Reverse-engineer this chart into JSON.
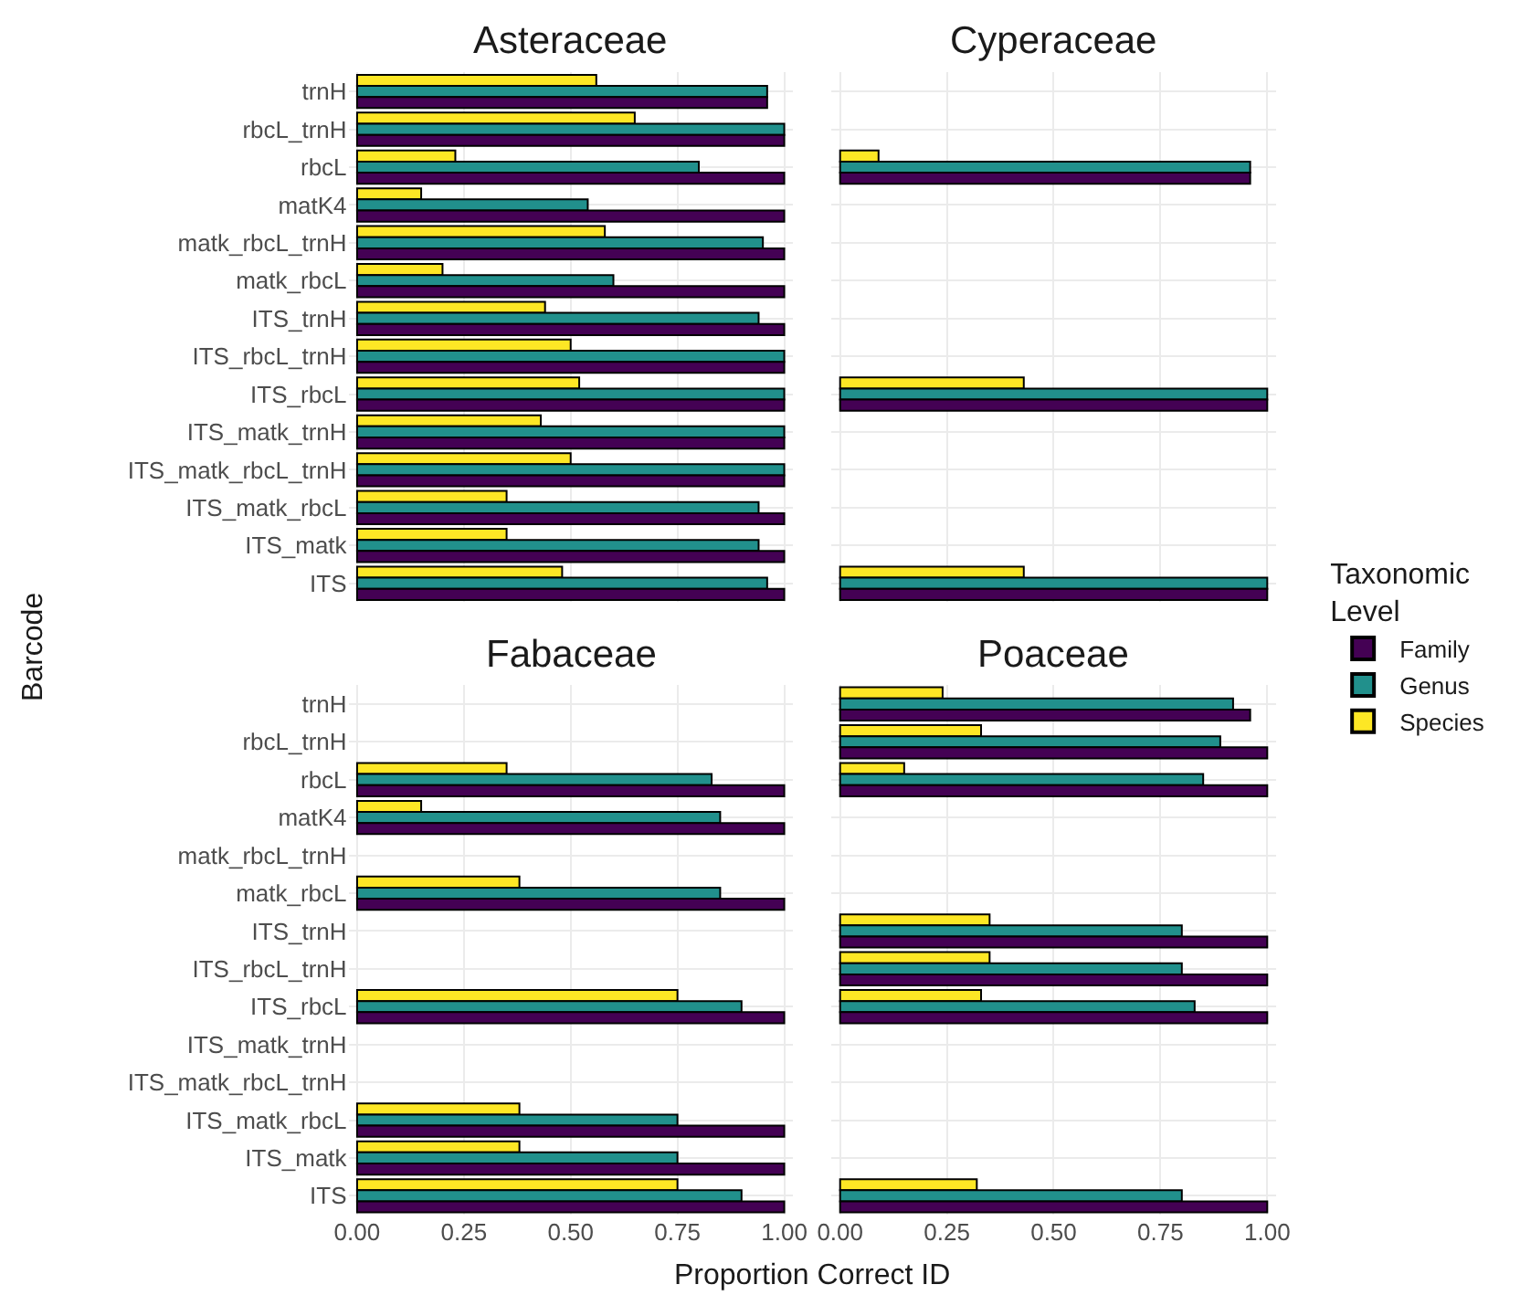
{
  "chart_data": [
    {
      "type": "bar",
      "orientation": "horizontal",
      "title": "Asteraceae",
      "xlabel": "Proportion Correct ID",
      "ylabel": "Barcode",
      "legend_title": "Taxonomic\nLevel",
      "legend": "right",
      "grid": true,
      "tick_labels": "y",
      "xlim": [
        -0.02,
        1.02
      ],
      "xticks": [
        {
          "value": 0,
          "label": null
        },
        {
          "value": 0.25,
          "label": null
        },
        {
          "value": 0.5,
          "label": null
        },
        {
          "value": 0.75,
          "label": null
        },
        {
          "value": 1,
          "label": null
        }
      ],
      "categories": [
        "trnH",
        "rbcL_trnH",
        "rbcL",
        "matK4",
        "matk_rbcL_trnH",
        "matk_rbcL",
        "ITS_trnH",
        "ITS_rbcL_trnH",
        "ITS_rbcL",
        "ITS_matk_trnH",
        "ITS_matk_rbcL_trnH",
        "ITS_matk_rbcL",
        "ITS_matk",
        "ITS"
      ],
      "series": [
        {
          "name": "Family",
          "color": "#440154",
          "values": [
            0.96,
            1,
            1,
            1,
            1,
            1,
            1,
            1,
            1,
            1,
            1,
            1,
            1,
            1
          ]
        },
        {
          "name": "Genus",
          "color": "#21908c",
          "values": [
            0.96,
            1,
            0.8,
            0.54,
            0.95,
            0.6,
            0.94,
            1,
            1,
            1,
            1,
            0.94,
            0.94,
            0.96
          ]
        },
        {
          "name": "Species",
          "color": "#fde725",
          "values": [
            0.56,
            0.65,
            0.23,
            0.15,
            0.58,
            0.2,
            0.44,
            0.5,
            0.52,
            0.43,
            0.5,
            0.35,
            0.35,
            0.48
          ]
        }
      ]
    },
    {
      "type": "bar",
      "orientation": "horizontal",
      "title": "Cyperaceae",
      "grid": true,
      "tick_labels": false,
      "xlim": [
        -0.02,
        1.02
      ],
      "xticks": [
        {
          "value": 0,
          "label": null
        },
        {
          "value": 0.25,
          "label": null
        },
        {
          "value": 0.5,
          "label": null
        },
        {
          "value": 0.75,
          "label": null
        },
        {
          "value": 1,
          "label": null
        }
      ],
      "categories": [
        null,
        null,
        null,
        null,
        null,
        null,
        null,
        null,
        null,
        null,
        null,
        null,
        null,
        null
      ],
      "series": [
        {
          "color": "#440154",
          "values": [
            null,
            null,
            0.96,
            null,
            null,
            null,
            null,
            null,
            1,
            null,
            null,
            null,
            null,
            1
          ]
        },
        {
          "color": "#21908c",
          "values": [
            null,
            null,
            0.96,
            null,
            null,
            null,
            null,
            null,
            1,
            null,
            null,
            null,
            null,
            1
          ]
        },
        {
          "color": "#fde725",
          "values": [
            null,
            null,
            0.09,
            null,
            null,
            null,
            null,
            null,
            0.43,
            null,
            null,
            null,
            null,
            0.43
          ]
        }
      ]
    },
    {
      "type": "bar",
      "orientation": "horizontal",
      "title": "Fabaceae",
      "grid": true,
      "xlim": [
        -0.02,
        1.02
      ],
      "xticks": [
        {
          "value": 0,
          "label": "0.00"
        },
        {
          "value": 0.25,
          "label": "0.25"
        },
        {
          "value": 0.5,
          "label": "0.50"
        },
        {
          "value": 0.75,
          "label": "0.75"
        },
        {
          "value": 1,
          "label": "1.00"
        }
      ],
      "categories": [
        "trnH",
        "rbcL_trnH",
        "rbcL",
        "matK4",
        "matk_rbcL_trnH",
        "matk_rbcL",
        "ITS_trnH",
        "ITS_rbcL_trnH",
        "ITS_rbcL",
        "ITS_matk_trnH",
        "ITS_matk_rbcL_trnH",
        "ITS_matk_rbcL",
        "ITS_matk",
        "ITS"
      ],
      "series": [
        {
          "color": "#440154",
          "values": [
            null,
            null,
            1,
            1,
            null,
            1,
            null,
            null,
            1,
            null,
            null,
            1,
            1,
            1
          ]
        },
        {
          "color": "#21908c",
          "values": [
            null,
            null,
            0.83,
            0.85,
            null,
            0.85,
            null,
            null,
            0.9,
            null,
            null,
            0.75,
            0.75,
            0.9
          ]
        },
        {
          "color": "#fde725",
          "values": [
            null,
            null,
            0.35,
            0.15,
            null,
            0.38,
            null,
            null,
            0.75,
            null,
            null,
            0.38,
            0.38,
            0.75
          ]
        }
      ]
    },
    {
      "type": "bar",
      "orientation": "horizontal",
      "title": "Poaceae",
      "grid": true,
      "tick_labels": "x",
      "xlim": [
        -0.02,
        1.02
      ],
      "xticks": [
        {
          "value": 0,
          "label": "0.00"
        },
        {
          "value": 0.25,
          "label": "0.25"
        },
        {
          "value": 0.5,
          "label": "0.50"
        },
        {
          "value": 0.75,
          "label": "0.75"
        },
        {
          "value": 1,
          "label": "1.00"
        }
      ],
      "categories": [
        null,
        null,
        null,
        null,
        null,
        null,
        null,
        null,
        null,
        null,
        null,
        null,
        null,
        null
      ],
      "series": [
        {
          "color": "#440154",
          "values": [
            0.96,
            1,
            1,
            null,
            null,
            null,
            1,
            1,
            1,
            null,
            null,
            null,
            null,
            1
          ]
        },
        {
          "color": "#21908c",
          "values": [
            0.92,
            0.89,
            0.85,
            null,
            null,
            null,
            0.8,
            0.8,
            0.83,
            null,
            null,
            null,
            null,
            0.8
          ]
        },
        {
          "color": "#fde725",
          "values": [
            0.24,
            0.33,
            0.15,
            null,
            null,
            null,
            0.35,
            0.35,
            0.33,
            null,
            null,
            null,
            null,
            0.32
          ]
        }
      ]
    }
  ]
}
